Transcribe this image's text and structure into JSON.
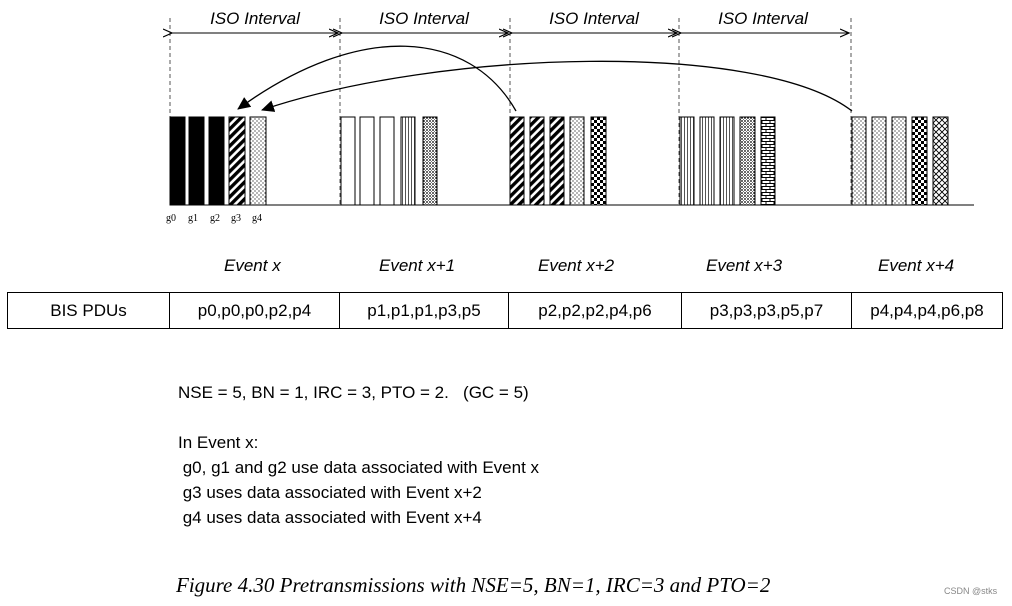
{
  "intervals": [
    "ISO Interval",
    "ISO Interval",
    "ISO Interval",
    "ISO Interval"
  ],
  "slot_labels": [
    "g0",
    "g1",
    "g2",
    "g3",
    "g4"
  ],
  "events": [
    "Event x",
    "Event x+1",
    "Event  x+2",
    "Event x+3",
    "Event x+4"
  ],
  "table": {
    "row_header": "BIS PDUs",
    "cells": [
      "p0,p0,p0,p2,p4",
      "p1,p1,p1,p3,p5",
      "p2,p2,p2,p4,p6",
      "p3,p3,p3,p5,p7",
      "p4,p4,p4,p6,p8"
    ]
  },
  "params": {
    "line1": "NSE = 5, BN = 1, IRC = 3, PTO = 2.   (GC = 5)",
    "line2": "In Event x:",
    "line3": " g0, g1 and g2 use data associated with Event x",
    "line4": " g3 uses data associated with Event x+2",
    "line5": " g4 uses data associated with Event x+4"
  },
  "caption": "Figure 4.30  Pretransmissions with NSE=5, BN=1, IRC=3 and PTO=2",
  "watermark": "CSDN @stks"
}
